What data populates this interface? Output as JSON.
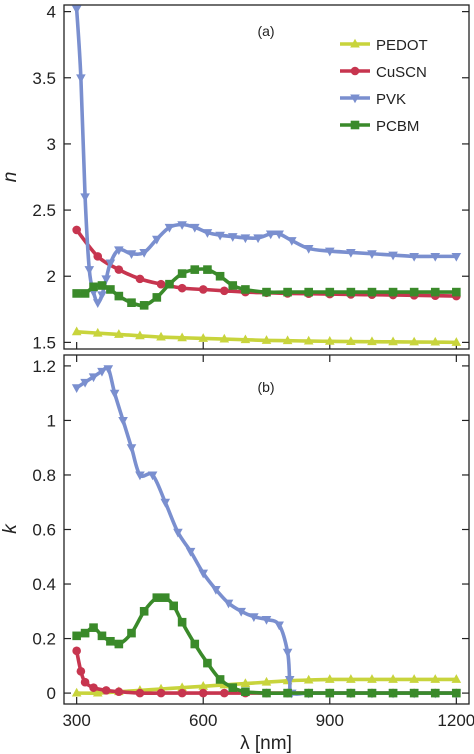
{
  "chart_data": [
    {
      "type": "line",
      "panel_label": "(a)",
      "ylabel": "n",
      "ylim": [
        1.45,
        4.05
      ],
      "yticks": [
        1.5,
        2,
        2.5,
        3,
        3.5,
        4
      ],
      "ytick_labels": [
        "1.5",
        "2",
        "2.5",
        "3",
        "3.5",
        "4"
      ],
      "xlim": [
        300,
        1200
      ],
      "grid": false,
      "legend_position": "top-right",
      "series": [
        {
          "name": "PEDOT",
          "color": "#c8d43c",
          "marker": "triangle-up",
          "x": [
            300,
            350,
            400,
            450,
            500,
            550,
            600,
            650,
            700,
            750,
            800,
            850,
            900,
            950,
            1000,
            1050,
            1100,
            1150,
            1200
          ],
          "y": [
            1.58,
            1.57,
            1.56,
            1.55,
            1.54,
            1.535,
            1.53,
            1.525,
            1.52,
            1.515,
            1.513,
            1.51,
            1.508,
            1.506,
            1.505,
            1.504,
            1.503,
            1.502,
            1.5
          ]
        },
        {
          "name": "CuSCN",
          "color": "#c7354f",
          "marker": "circle",
          "x": [
            300,
            350,
            400,
            450,
            500,
            550,
            600,
            650,
            700,
            750,
            800,
            850,
            900,
            950,
            1000,
            1050,
            1100,
            1150,
            1200
          ],
          "y": [
            2.35,
            2.15,
            2.05,
            1.98,
            1.94,
            1.91,
            1.9,
            1.89,
            1.88,
            1.875,
            1.87,
            1.868,
            1.865,
            1.862,
            1.86,
            1.858,
            1.856,
            1.853,
            1.85
          ]
        },
        {
          "name": "PVK",
          "color": "#7a8fcf",
          "marker": "triangle-down",
          "x": [
            300,
            310,
            320,
            330,
            340,
            350,
            360,
            370,
            380,
            400,
            430,
            460,
            490,
            520,
            550,
            580,
            610,
            640,
            670,
            700,
            730,
            760,
            780,
            810,
            850,
            900,
            950,
            1000,
            1050,
            1100,
            1150,
            1200
          ],
          "y": [
            4.02,
            3.5,
            2.6,
            2.05,
            1.88,
            1.8,
            1.86,
            1.98,
            2.1,
            2.2,
            2.17,
            2.18,
            2.28,
            2.37,
            2.39,
            2.37,
            2.33,
            2.31,
            2.3,
            2.29,
            2.29,
            2.32,
            2.32,
            2.27,
            2.21,
            2.19,
            2.18,
            2.17,
            2.16,
            2.15,
            2.15,
            2.15
          ]
        },
        {
          "name": "PCBM",
          "color": "#3a8a2a",
          "marker": "square",
          "x": [
            300,
            320,
            340,
            360,
            380,
            400,
            430,
            460,
            490,
            520,
            550,
            580,
            610,
            640,
            670,
            700,
            750,
            800,
            850,
            900,
            950,
            1000,
            1050,
            1100,
            1150,
            1200
          ],
          "y": [
            1.87,
            1.87,
            1.92,
            1.93,
            1.9,
            1.85,
            1.8,
            1.78,
            1.84,
            1.94,
            2.02,
            2.05,
            2.05,
            2.0,
            1.93,
            1.9,
            1.88,
            1.88,
            1.88,
            1.88,
            1.88,
            1.88,
            1.88,
            1.88,
            1.88,
            1.88
          ]
        }
      ]
    },
    {
      "type": "line",
      "panel_label": "(b)",
      "ylabel": "k",
      "xlabel": "λ [nm]",
      "ylim": [
        -0.04,
        1.24
      ],
      "yticks": [
        0,
        0.2,
        0.4,
        0.6,
        0.8,
        1.0,
        1.2
      ],
      "ytick_labels": [
        "0",
        "0.2",
        "0.4",
        "0.6",
        "0.8",
        "1",
        "1.2"
      ],
      "xlim": [
        270,
        1230
      ],
      "xticks": [
        300,
        600,
        900,
        1200
      ],
      "xtick_labels": [
        "300",
        "600",
        "900",
        "1200"
      ],
      "grid": false,
      "series": [
        {
          "name": "PEDOT",
          "color": "#c8d43c",
          "marker": "triangle-up",
          "x": [
            300,
            350,
            400,
            450,
            500,
            550,
            600,
            650,
            700,
            750,
            800,
            850,
            900,
            950,
            1000,
            1050,
            1100,
            1150,
            1200
          ],
          "y": [
            0.0,
            0.0,
            0.005,
            0.01,
            0.015,
            0.02,
            0.025,
            0.03,
            0.035,
            0.04,
            0.045,
            0.048,
            0.05,
            0.05,
            0.05,
            0.05,
            0.05,
            0.05,
            0.05
          ]
        },
        {
          "name": "CuSCN",
          "color": "#c7354f",
          "marker": "circle",
          "x": [
            300,
            310,
            320,
            340,
            370,
            400,
            450,
            500,
            550,
            600,
            650,
            700,
            750,
            800,
            850,
            900,
            950,
            1000,
            1050,
            1100,
            1150,
            1200
          ],
          "y": [
            0.155,
            0.08,
            0.04,
            0.02,
            0.01,
            0.005,
            0.0,
            0.0,
            0.0,
            0.0,
            0.0,
            0.0,
            0.0,
            0.0,
            0.0,
            0.0,
            0.0,
            0.0,
            0.0,
            0.0,
            0.0,
            0.0
          ]
        },
        {
          "name": "PVK",
          "color": "#7a8fcf",
          "marker": "triangle-down",
          "x": [
            300,
            320,
            340,
            360,
            375,
            390,
            410,
            430,
            450,
            480,
            510,
            540,
            570,
            600,
            630,
            660,
            690,
            720,
            750,
            780,
            800,
            805,
            810,
            850,
            900,
            950,
            1000,
            1050,
            1100,
            1150,
            1200
          ],
          "y": [
            1.12,
            1.14,
            1.16,
            1.18,
            1.19,
            1.1,
            1.0,
            0.9,
            0.8,
            0.8,
            0.7,
            0.59,
            0.52,
            0.44,
            0.38,
            0.33,
            0.3,
            0.28,
            0.27,
            0.25,
            0.15,
            0.05,
            0.0,
            0.0,
            0.0,
            0.0,
            0.0,
            0.0,
            0.0,
            0.0,
            0.0
          ]
        },
        {
          "name": "PCBM",
          "color": "#3a8a2a",
          "marker": "square",
          "x": [
            300,
            320,
            340,
            360,
            380,
            400,
            430,
            460,
            490,
            510,
            530,
            550,
            580,
            610,
            640,
            670,
            700,
            750,
            800,
            850,
            900,
            950,
            1000,
            1050,
            1100,
            1150,
            1200
          ],
          "y": [
            0.21,
            0.22,
            0.24,
            0.21,
            0.19,
            0.18,
            0.22,
            0.3,
            0.35,
            0.35,
            0.32,
            0.26,
            0.18,
            0.11,
            0.05,
            0.02,
            0.005,
            0.0,
            0.0,
            0.0,
            0.0,
            0.0,
            0.0,
            0.0,
            0.0,
            0.0,
            0.0
          ]
        }
      ]
    }
  ]
}
